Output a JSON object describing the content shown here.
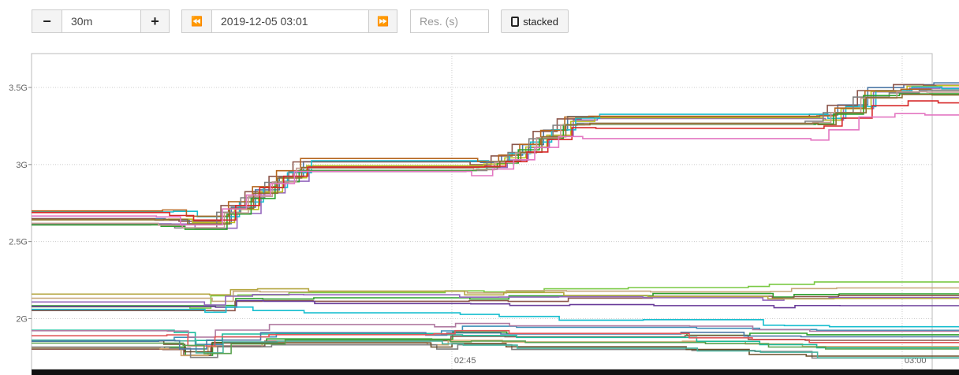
{
  "controls": {
    "range_minus_label": "−",
    "range_value": "30m",
    "range_plus_label": "+",
    "prev_label": "⏪",
    "end_time": "2019-12-05 03:01",
    "next_label": "⏩",
    "resolution_placeholder": "Res. (s)",
    "stacked_label": "stacked",
    "stacked_checked": false
  },
  "chart_data": {
    "type": "line",
    "x_ticks": [
      "02:45",
      "03:00"
    ],
    "y_ticks": [
      "2G",
      "2.5G",
      "3G",
      "3.5G"
    ],
    "xlim": [
      "02:31",
      "03:01"
    ],
    "ylim": [
      1.67,
      3.72
    ],
    "grid": true,
    "legend": "none",
    "series_groups": [
      {
        "group": "upper",
        "colors": [
          "#4e79a7",
          "#8c564b",
          "#9467bd",
          "#bcbd22",
          "#17becf",
          "#b5651d",
          "#7f7f7f",
          "#2ca02c",
          "#c49c94",
          "#8c6d31",
          "#d62728",
          "#e377c2"
        ],
        "final_values": [
          3.53,
          3.52,
          3.51,
          3.5,
          3.5,
          3.49,
          3.48,
          3.47,
          3.46,
          3.45,
          3.4,
          3.31
        ],
        "path": [
          [
            0,
            2.65
          ],
          [
            4.4,
            2.65
          ],
          [
            5.2,
            2.62
          ],
          [
            6.6,
            2.72
          ],
          [
            7.4,
            2.83
          ],
          [
            8.2,
            2.92
          ],
          [
            9,
            3.0
          ],
          [
            14.9,
            3.0
          ],
          [
            15.6,
            3.05
          ],
          [
            16.3,
            3.12
          ],
          [
            17,
            3.2
          ],
          [
            17.8,
            3.29
          ],
          [
            18.6,
            3.3
          ],
          [
            26.2,
            3.3
          ],
          [
            26.8,
            3.37
          ],
          [
            27.8,
            3.47
          ],
          [
            29,
            3.5
          ],
          [
            30,
            3.5
          ],
          [
            34.9,
            3.5
          ]
        ]
      },
      {
        "group": "middle",
        "colors": [
          "#7ac943",
          "#c7a77a",
          "#2ca02c",
          "#8c564b",
          "#9467bd",
          "#b5a642",
          "#6a3d9a",
          "#17becf"
        ],
        "final_values": [
          2.25,
          2.18,
          2.16,
          2.15,
          2.13,
          2.12,
          2.07,
          1.93
        ],
        "path": [
          [
            0,
            2.1
          ],
          [
            5.7,
            2.1
          ],
          [
            6.4,
            2.16
          ],
          [
            7.3,
            2.17
          ],
          [
            9,
            2.18
          ],
          [
            14.2,
            2.18
          ],
          [
            15.5,
            2.19
          ],
          [
            17.5,
            2.2
          ],
          [
            20.3,
            2.21
          ],
          [
            24.3,
            2.21
          ],
          [
            25,
            2.23
          ],
          [
            26.5,
            2.24
          ],
          [
            34.9,
            2.24
          ]
        ]
      },
      {
        "group": "lower",
        "colors": [
          "#3a8fb7",
          "#2ca02c",
          "#8c564b",
          "#d2a56d",
          "#1abc9c",
          "#7f7f7f",
          "#6b4f2a",
          "#46b39d",
          "#b07aa1",
          "#4e79a7",
          "#e15759",
          "#59a14f"
        ],
        "final_values": [
          1.92,
          1.9,
          1.87,
          1.82,
          1.79,
          1.75,
          1.74,
          1.73,
          1.92,
          1.88,
          1.85,
          1.8
        ],
        "path": [
          [
            0,
            1.87
          ],
          [
            4.6,
            1.87
          ],
          [
            5.3,
            1.82
          ],
          [
            6.2,
            1.88
          ],
          [
            8,
            1.9
          ],
          [
            13.5,
            1.89
          ],
          [
            14.2,
            1.91
          ],
          [
            16,
            1.9
          ],
          [
            22,
            1.89
          ],
          [
            24.1,
            1.88
          ],
          [
            26,
            1.86
          ],
          [
            34.9,
            1.86
          ]
        ]
      }
    ]
  }
}
